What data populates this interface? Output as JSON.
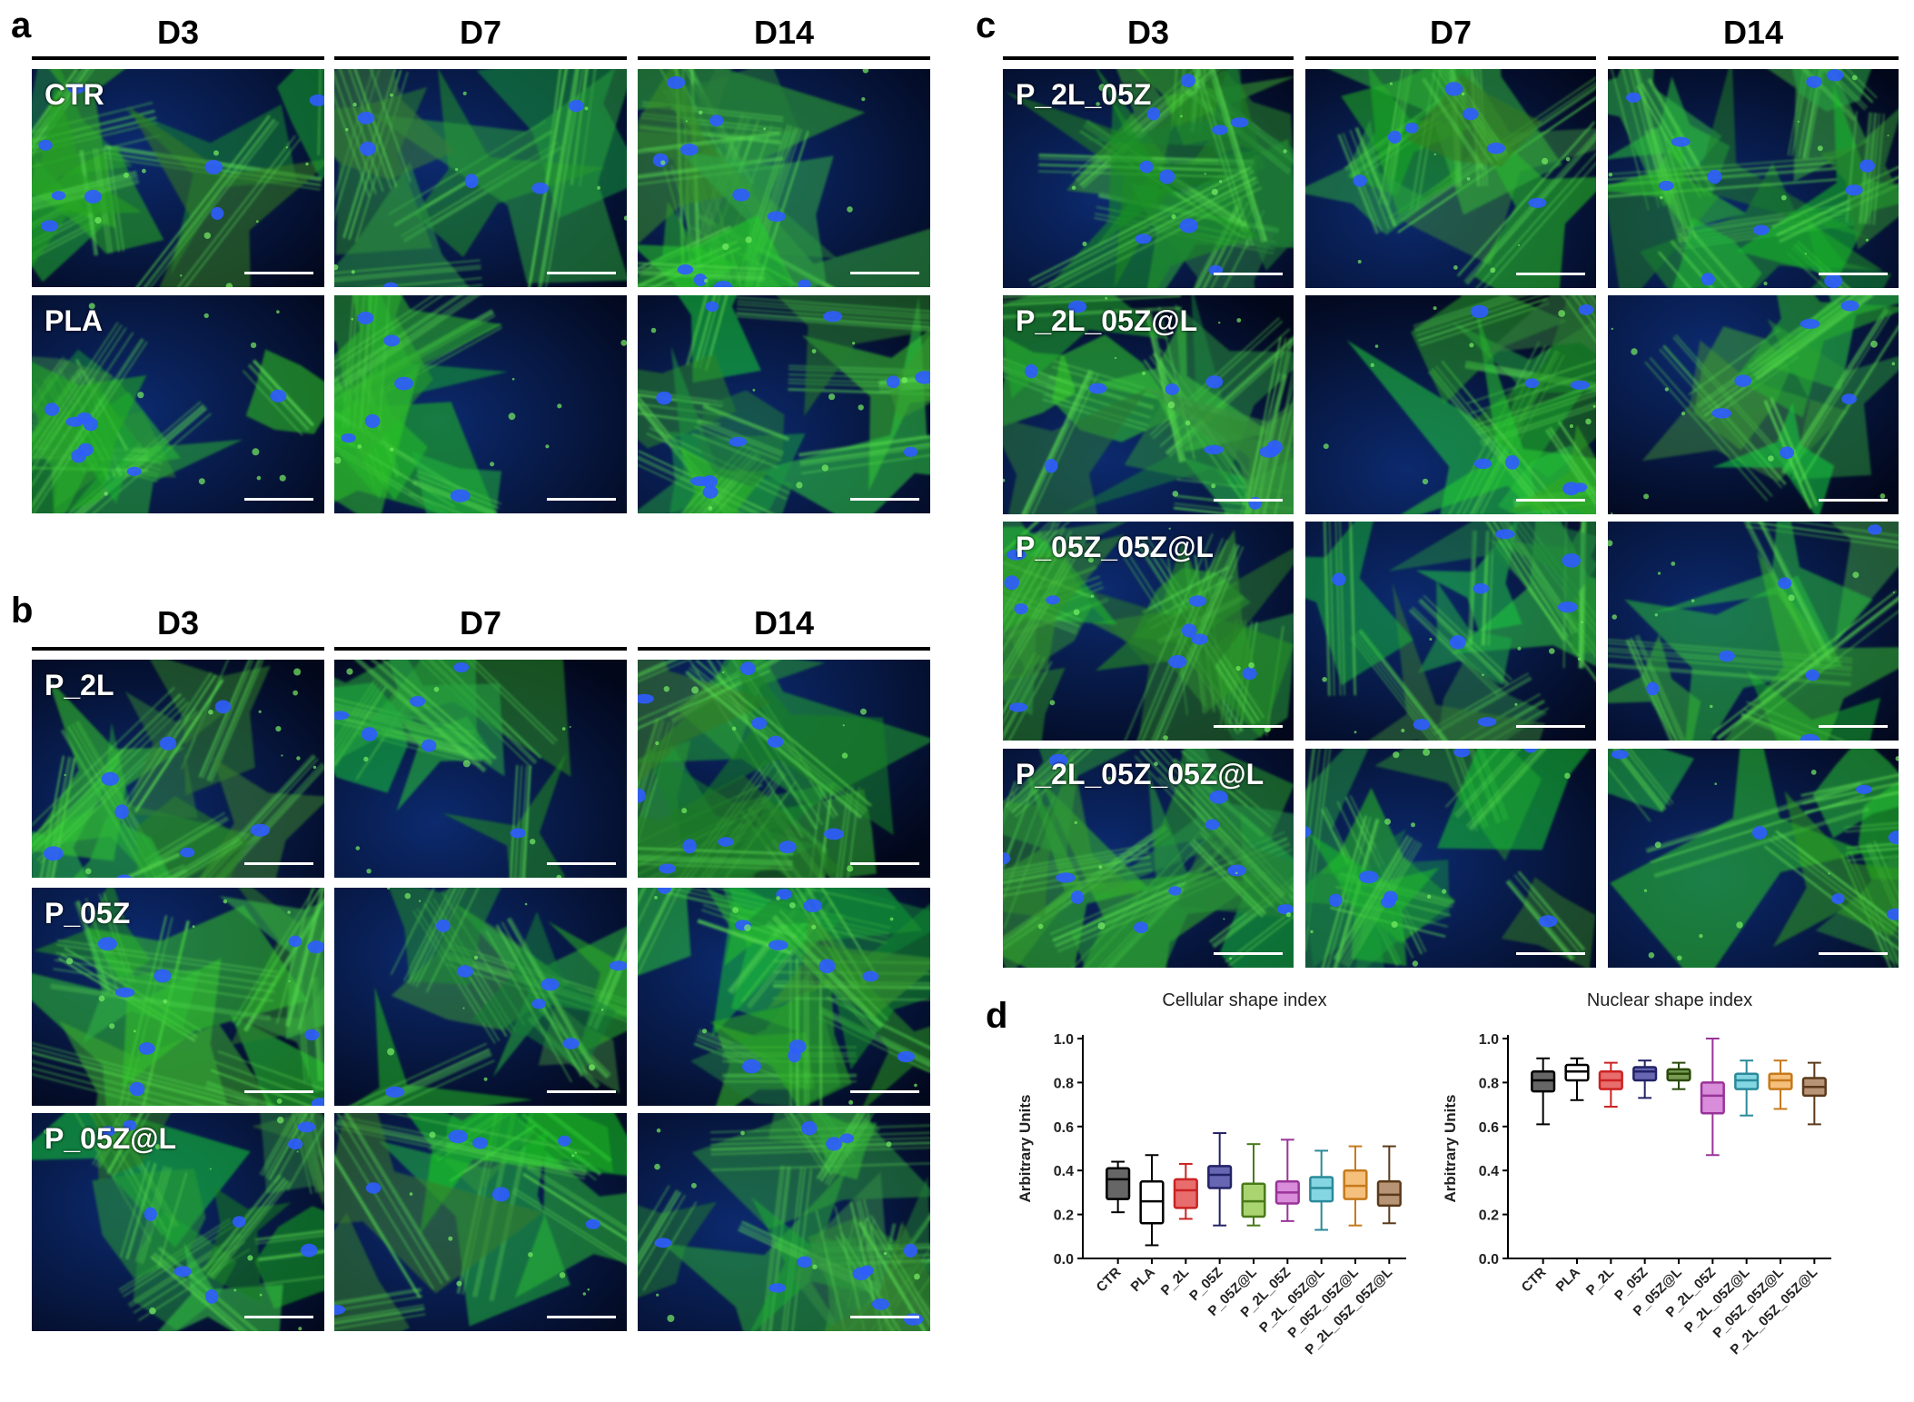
{
  "panels": {
    "a": {
      "label": "a",
      "columns": [
        "D3",
        "D7",
        "D14"
      ],
      "rows": [
        "CTR",
        "PLA"
      ]
    },
    "b": {
      "label": "b",
      "columns": [
        "D3",
        "D7",
        "D14"
      ],
      "rows": [
        "P_2L",
        "P_05Z",
        "P_05Z@L"
      ]
    },
    "c": {
      "label": "c",
      "columns": [
        "D3",
        "D7",
        "D14"
      ],
      "rows": [
        "P_2L_05Z",
        "P_2L_05Z@L",
        "P_05Z_05Z@L",
        "P_2L_05Z_05Z@L"
      ]
    },
    "d": {
      "label": "d"
    }
  },
  "chart_data": [
    {
      "type": "box",
      "title": "Cellular shape index",
      "ylabel": "Arbitrary Units",
      "ylim": [
        0,
        1.0
      ],
      "yticks": [
        "0.0",
        "0.2",
        "0.4",
        "0.6",
        "0.8",
        "1.0"
      ],
      "categories": [
        "CTR",
        "PLA",
        "P_2L",
        "P_05Z",
        "P_05Z@L",
        "P_2L_05Z",
        "P_2L_05Z@L",
        "P_05Z_05Z@L",
        "P_2L_05Z_05Z@L"
      ],
      "colors": [
        "#333333",
        "#ffffff",
        "#e03c3c",
        "#333399",
        "#8cc63f",
        "#cc66cc",
        "#5bc8d8",
        "#f2a950",
        "#a0704a"
      ],
      "strokes": [
        "#000000",
        "#000000",
        "#cc2222",
        "#222266",
        "#4a7a1a",
        "#993399",
        "#2a8a9a",
        "#c67a1a",
        "#5a3a1a"
      ],
      "boxes": [
        {
          "min": 0.21,
          "q1": 0.27,
          "median": 0.36,
          "q3": 0.41,
          "max": 0.44
        },
        {
          "min": 0.06,
          "q1": 0.16,
          "median": 0.26,
          "q3": 0.35,
          "max": 0.47
        },
        {
          "min": 0.18,
          "q1": 0.23,
          "median": 0.31,
          "q3": 0.36,
          "max": 0.43
        },
        {
          "min": 0.15,
          "q1": 0.32,
          "median": 0.38,
          "q3": 0.42,
          "max": 0.57
        },
        {
          "min": 0.15,
          "q1": 0.19,
          "median": 0.26,
          "q3": 0.34,
          "max": 0.52
        },
        {
          "min": 0.17,
          "q1": 0.25,
          "median": 0.3,
          "q3": 0.35,
          "max": 0.54
        },
        {
          "min": 0.13,
          "q1": 0.26,
          "median": 0.32,
          "q3": 0.37,
          "max": 0.49
        },
        {
          "min": 0.15,
          "q1": 0.27,
          "median": 0.33,
          "q3": 0.4,
          "max": 0.51
        },
        {
          "min": 0.16,
          "q1": 0.24,
          "median": 0.29,
          "q3": 0.35,
          "max": 0.51
        }
      ]
    },
    {
      "type": "box",
      "title": "Nuclear shape index",
      "ylabel": "Arbitrary Units",
      "ylim": [
        0,
        1.0
      ],
      "yticks": [
        "0.0",
        "0.2",
        "0.4",
        "0.6",
        "0.8",
        "1.0"
      ],
      "categories": [
        "CTR",
        "PLA",
        "P_2L",
        "P_05Z",
        "P_05Z@L",
        "P_2L_05Z",
        "P_2L_05Z@L",
        "P_05Z_05Z@L",
        "P_2L_05Z_05Z@L"
      ],
      "colors": [
        "#333333",
        "#ffffff",
        "#e03c3c",
        "#333399",
        "#4a7a1a",
        "#cc66cc",
        "#5bc8d8",
        "#f2a950",
        "#a0704a"
      ],
      "strokes": [
        "#000000",
        "#000000",
        "#cc2222",
        "#222266",
        "#2a4a0a",
        "#993399",
        "#2a8a9a",
        "#c67a1a",
        "#5a3a1a"
      ],
      "boxes": [
        {
          "min": 0.61,
          "q1": 0.76,
          "median": 0.81,
          "q3": 0.85,
          "max": 0.91
        },
        {
          "min": 0.72,
          "q1": 0.81,
          "median": 0.85,
          "q3": 0.88,
          "max": 0.91
        },
        {
          "min": 0.69,
          "q1": 0.77,
          "median": 0.81,
          "q3": 0.85,
          "max": 0.89
        },
        {
          "min": 0.73,
          "q1": 0.81,
          "median": 0.85,
          "q3": 0.87,
          "max": 0.9
        },
        {
          "min": 0.77,
          "q1": 0.81,
          "median": 0.84,
          "q3": 0.86,
          "max": 0.89
        },
        {
          "min": 0.47,
          "q1": 0.66,
          "median": 0.74,
          "q3": 0.8,
          "max": 1.0
        },
        {
          "min": 0.65,
          "q1": 0.77,
          "median": 0.81,
          "q3": 0.84,
          "max": 0.9
        },
        {
          "min": 0.68,
          "q1": 0.77,
          "median": 0.81,
          "q3": 0.84,
          "max": 0.9
        },
        {
          "min": 0.61,
          "q1": 0.74,
          "median": 0.78,
          "q3": 0.82,
          "max": 0.89
        }
      ]
    }
  ]
}
